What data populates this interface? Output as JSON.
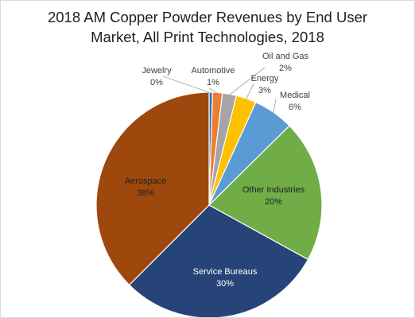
{
  "chart_data": {
    "type": "pie",
    "title_lines": [
      "2018 AM Copper Powder Revenues by End User",
      "Market, All Print Technologies, 2018"
    ],
    "slices": [
      {
        "name": "Jewelry",
        "value": 0.5,
        "label": "0%",
        "color": "#2e75b6"
      },
      {
        "name": "Automotive",
        "value": 1.4,
        "label": "1%",
        "color": "#ed7d31"
      },
      {
        "name": "Oil and Gas",
        "value": 2.0,
        "label": "2%",
        "color": "#a5a5a5"
      },
      {
        "name": "Energy",
        "value": 2.9,
        "label": "3%",
        "color": "#ffc000"
      },
      {
        "name": "Medical",
        "value": 5.8,
        "label": "6%",
        "color": "#5b9bd5"
      },
      {
        "name": "Other Industries",
        "value": 20.4,
        "label": "20%",
        "color": "#70ad47"
      },
      {
        "name": "Service Bureaus",
        "value": 29.5,
        "label": "30%",
        "color": "#264478"
      },
      {
        "name": "Aerospace",
        "value": 37.5,
        "label": "38%",
        "color": "#9e480e"
      }
    ],
    "legend": "none"
  }
}
